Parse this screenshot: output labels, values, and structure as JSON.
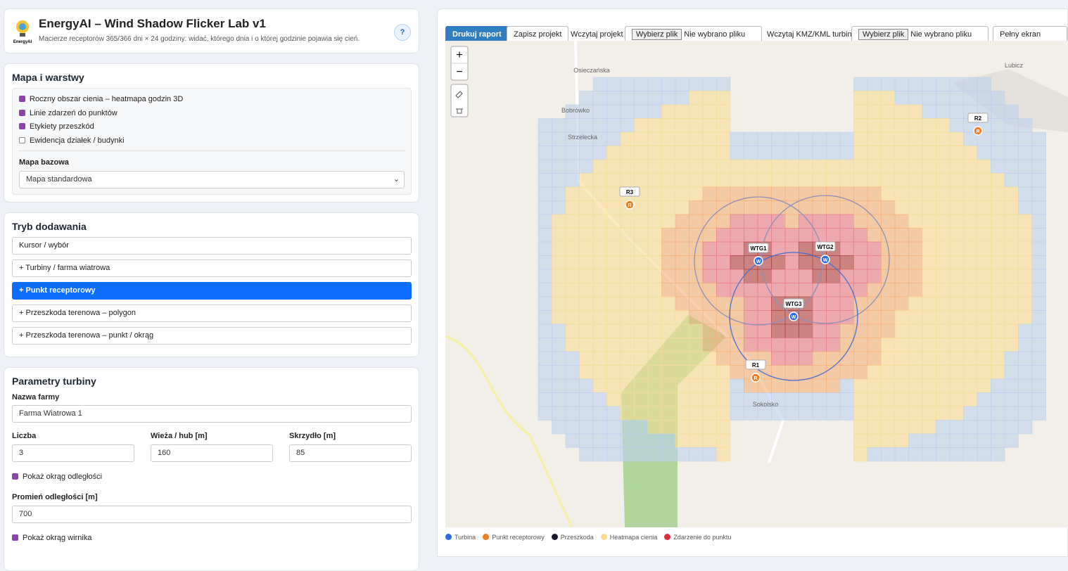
{
  "header": {
    "logo": "EnergyAI",
    "title": "EnergyAI – Wind Shadow Flicker Lab v1",
    "subtitle": "Macierze receptorów 365/366 dni × 24 godziny: widać, którego dnia i o której godzinie pojawia się cień.",
    "help": "?"
  },
  "layers": {
    "title": "Mapa i warstwy",
    "options": [
      {
        "label": "Roczny obszar cienia – heatmapa godzin 3D",
        "checked": true
      },
      {
        "label": "Linie zdarzeń do punktów",
        "checked": true
      },
      {
        "label": "Etykiety przeszkód",
        "checked": true
      },
      {
        "label": "Ewidencja działek / budynki",
        "checked": false
      }
    ],
    "basemap_label": "Mapa bazowa",
    "basemap": "Mapa standardowa"
  },
  "mode": {
    "title": "Tryb dodawania",
    "buttons": [
      "Kursor / wybór",
      "+ Turbiny / farma wiatrowa",
      "+ Punkt receptorowy",
      "+ Przeszkoda terenowa – polygon",
      "+ Przeszkoda terenowa – punkt / okrąg"
    ],
    "active": 2
  },
  "turbine": {
    "title": "Parametry turbiny",
    "farm_label": "Nazwa farmy",
    "farm": "Farma Wiatrowa 1",
    "count_label": "Liczba",
    "count": 3,
    "hub_label": "Wieża / hub [m]",
    "hub": 160,
    "blade_label": "Skrzydło [m]",
    "blade": 85,
    "show_distance": "Pokaż okrąg odległości",
    "radius_label": "Promień odległości [m]",
    "radius": 700,
    "show_rotor": "Pokaż okrąg wirnika"
  },
  "toolbar": {
    "print": "Drukuj raport",
    "save": "Zapisz projekt",
    "load_label": "Wczytaj projekt",
    "choose": "Wybierz plik",
    "none": "Nie wybrano pliku",
    "kml_label": "Wczytaj KMZ/KML turbin",
    "choose2": "Wybierz plik",
    "none2": "Nie wybrano pliku",
    "fullscreen": "Pełny ekran mapy"
  },
  "map": {
    "zoom_in": "+",
    "zoom_out": "−",
    "places": [
      "Bobrówko",
      "Lubicz",
      "Sokolsko",
      "Strzelecka",
      "Osieczańska"
    ],
    "turbines": [
      "WTG1",
      "WTG2",
      "WTG3"
    ],
    "turbine_icon": "W",
    "receptors": [
      "R1",
      "R2",
      "R3"
    ],
    "receptor_icon": "R"
  },
  "legend": [
    "Turbina",
    "Punkt receptorowy",
    "Przeszkoda",
    "Heatmapa cienia",
    "Zdarzenie do punktu"
  ]
}
